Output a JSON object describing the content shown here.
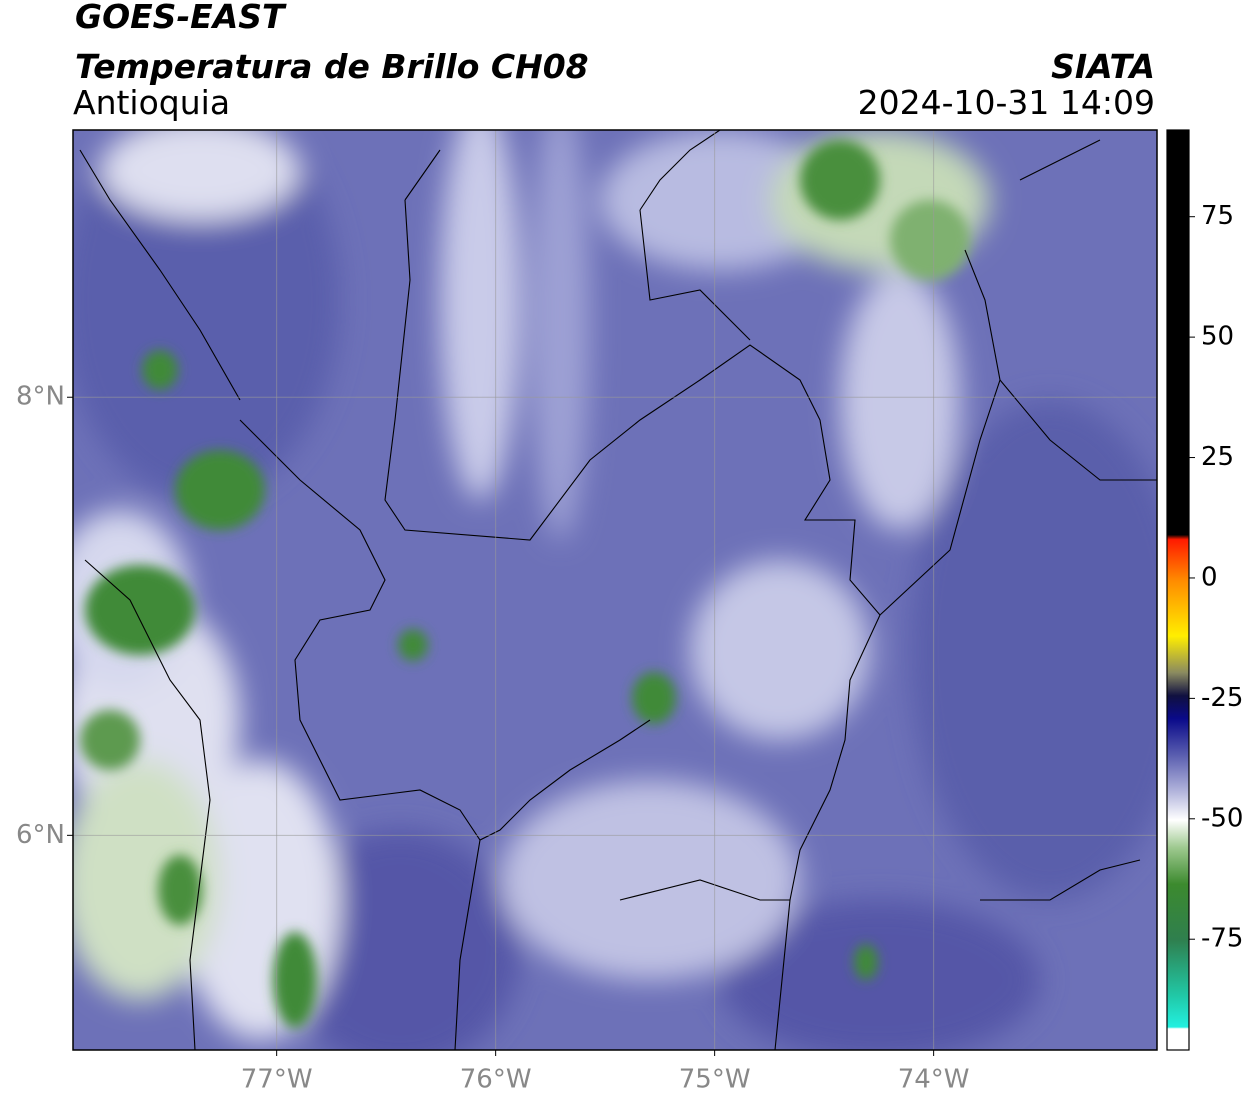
{
  "header": {
    "title": "GOES-EAST",
    "subtitle": "Temperatura de Brillo CH08",
    "region": "Antioquia",
    "source": "SIATA",
    "datetime": "2024-10-31 14:09"
  },
  "map": {
    "xlim": [
      -77.93,
      -72.98
    ],
    "ylim": [
      5.02,
      9.22
    ],
    "xticks": [
      {
        "value": -77,
        "label": "77°W"
      },
      {
        "value": -76,
        "label": "76°W"
      },
      {
        "value": -75,
        "label": "75°W"
      },
      {
        "value": -74,
        "label": "74°W"
      }
    ],
    "yticks": [
      {
        "value": 8,
        "label": "8°N"
      },
      {
        "value": 6,
        "label": "6°N"
      }
    ],
    "grid": true
  },
  "colorbar": {
    "lim": [
      -98,
      93
    ],
    "ticks": [
      75,
      50,
      25,
      0,
      -25,
      -50,
      -75
    ]
  }
}
